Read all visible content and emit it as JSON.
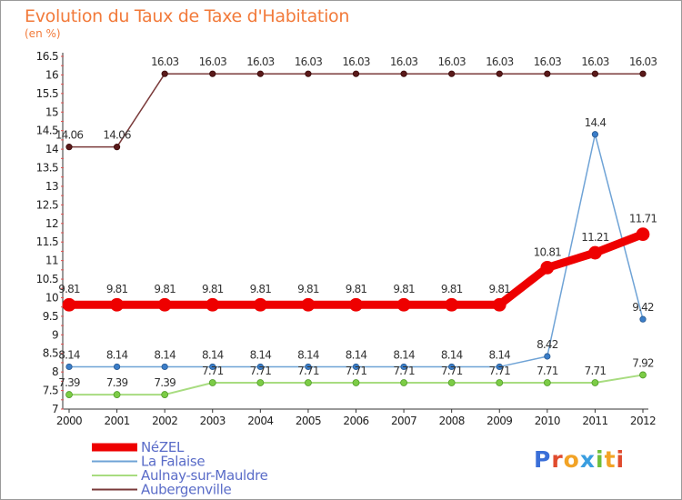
{
  "header": {
    "title": "Evolution du Taux de Taxe d'Habitation",
    "unit": "(en %)"
  },
  "logo": {
    "text": "Proxiti",
    "letter_colors": [
      "#3a6fd8",
      "#e04b2e",
      "#f2a326",
      "#3a9ee0",
      "#6fbf3a",
      "#f2a326",
      "#e04b2e"
    ]
  },
  "chart_data": {
    "type": "line",
    "title": "Evolution du Taux de Taxe d'Habitation",
    "ylabel": "(en %)",
    "xlabel": "",
    "x": [
      "2000",
      "2001",
      "2002",
      "2003",
      "2004",
      "2005",
      "2006",
      "2007",
      "2008",
      "2009",
      "2010",
      "2011",
      "2012"
    ],
    "ylim": [
      7,
      16.5
    ],
    "yticks": [
      "7",
      "7.5",
      "8",
      "8.5",
      "9",
      "9.5",
      "10",
      "10.5",
      "11",
      "11.5",
      "12",
      "12.5",
      "13",
      "13.5",
      "14",
      "14.5",
      "15",
      "15.5",
      "16",
      "16.5"
    ],
    "grid": false,
    "legend_position": "bottom-left",
    "series": [
      {
        "name": "NéZEL",
        "color": "#ee0000",
        "values": [
          9.81,
          9.81,
          9.81,
          9.81,
          9.81,
          9.81,
          9.81,
          9.81,
          9.81,
          9.81,
          10.81,
          11.21,
          11.71
        ],
        "labels": [
          "9.81",
          "9.81",
          "9.81",
          "9.81",
          "9.81",
          "9.81",
          "9.81",
          "9.81",
          "9.81",
          "9.81",
          "10.81",
          "11.21",
          "11.71"
        ]
      },
      {
        "name": "La Falaise",
        "color": "#6fa3d6",
        "values": [
          8.14,
          8.14,
          8.14,
          8.14,
          8.14,
          8.14,
          8.14,
          8.14,
          8.14,
          8.14,
          8.42,
          14.4,
          9.42
        ],
        "labels": [
          "8.14",
          "8.14",
          "8.14",
          "8.14",
          "8.14",
          "8.14",
          "8.14",
          "8.14",
          "8.14",
          "8.14",
          "8.42",
          "14.4",
          "9.42"
        ]
      },
      {
        "name": "Aulnay-sur-Mauldre",
        "color": "#a8dc80",
        "values": [
          7.39,
          7.39,
          7.39,
          7.71,
          7.71,
          7.71,
          7.71,
          7.71,
          7.71,
          7.71,
          7.71,
          7.71,
          7.92
        ],
        "labels": [
          "7.39",
          "7.39",
          "7.39",
          "7.71",
          "7.71",
          "7.71",
          "7.71",
          "7.71",
          "7.71",
          "7.71",
          "7.71",
          "7.71",
          "7.92"
        ]
      },
      {
        "name": "Aubergenville",
        "color": "#7a3a3a",
        "values": [
          14.06,
          14.06,
          16.03,
          16.03,
          16.03,
          16.03,
          16.03,
          16.03,
          16.03,
          16.03,
          16.03,
          16.03,
          16.03
        ],
        "labels": [
          "14.06",
          "14.06",
          "16.03",
          "16.03",
          "16.03",
          "16.03",
          "16.03",
          "16.03",
          "16.03",
          "16.03",
          "16.03",
          "16.03",
          "16.03"
        ]
      }
    ]
  }
}
